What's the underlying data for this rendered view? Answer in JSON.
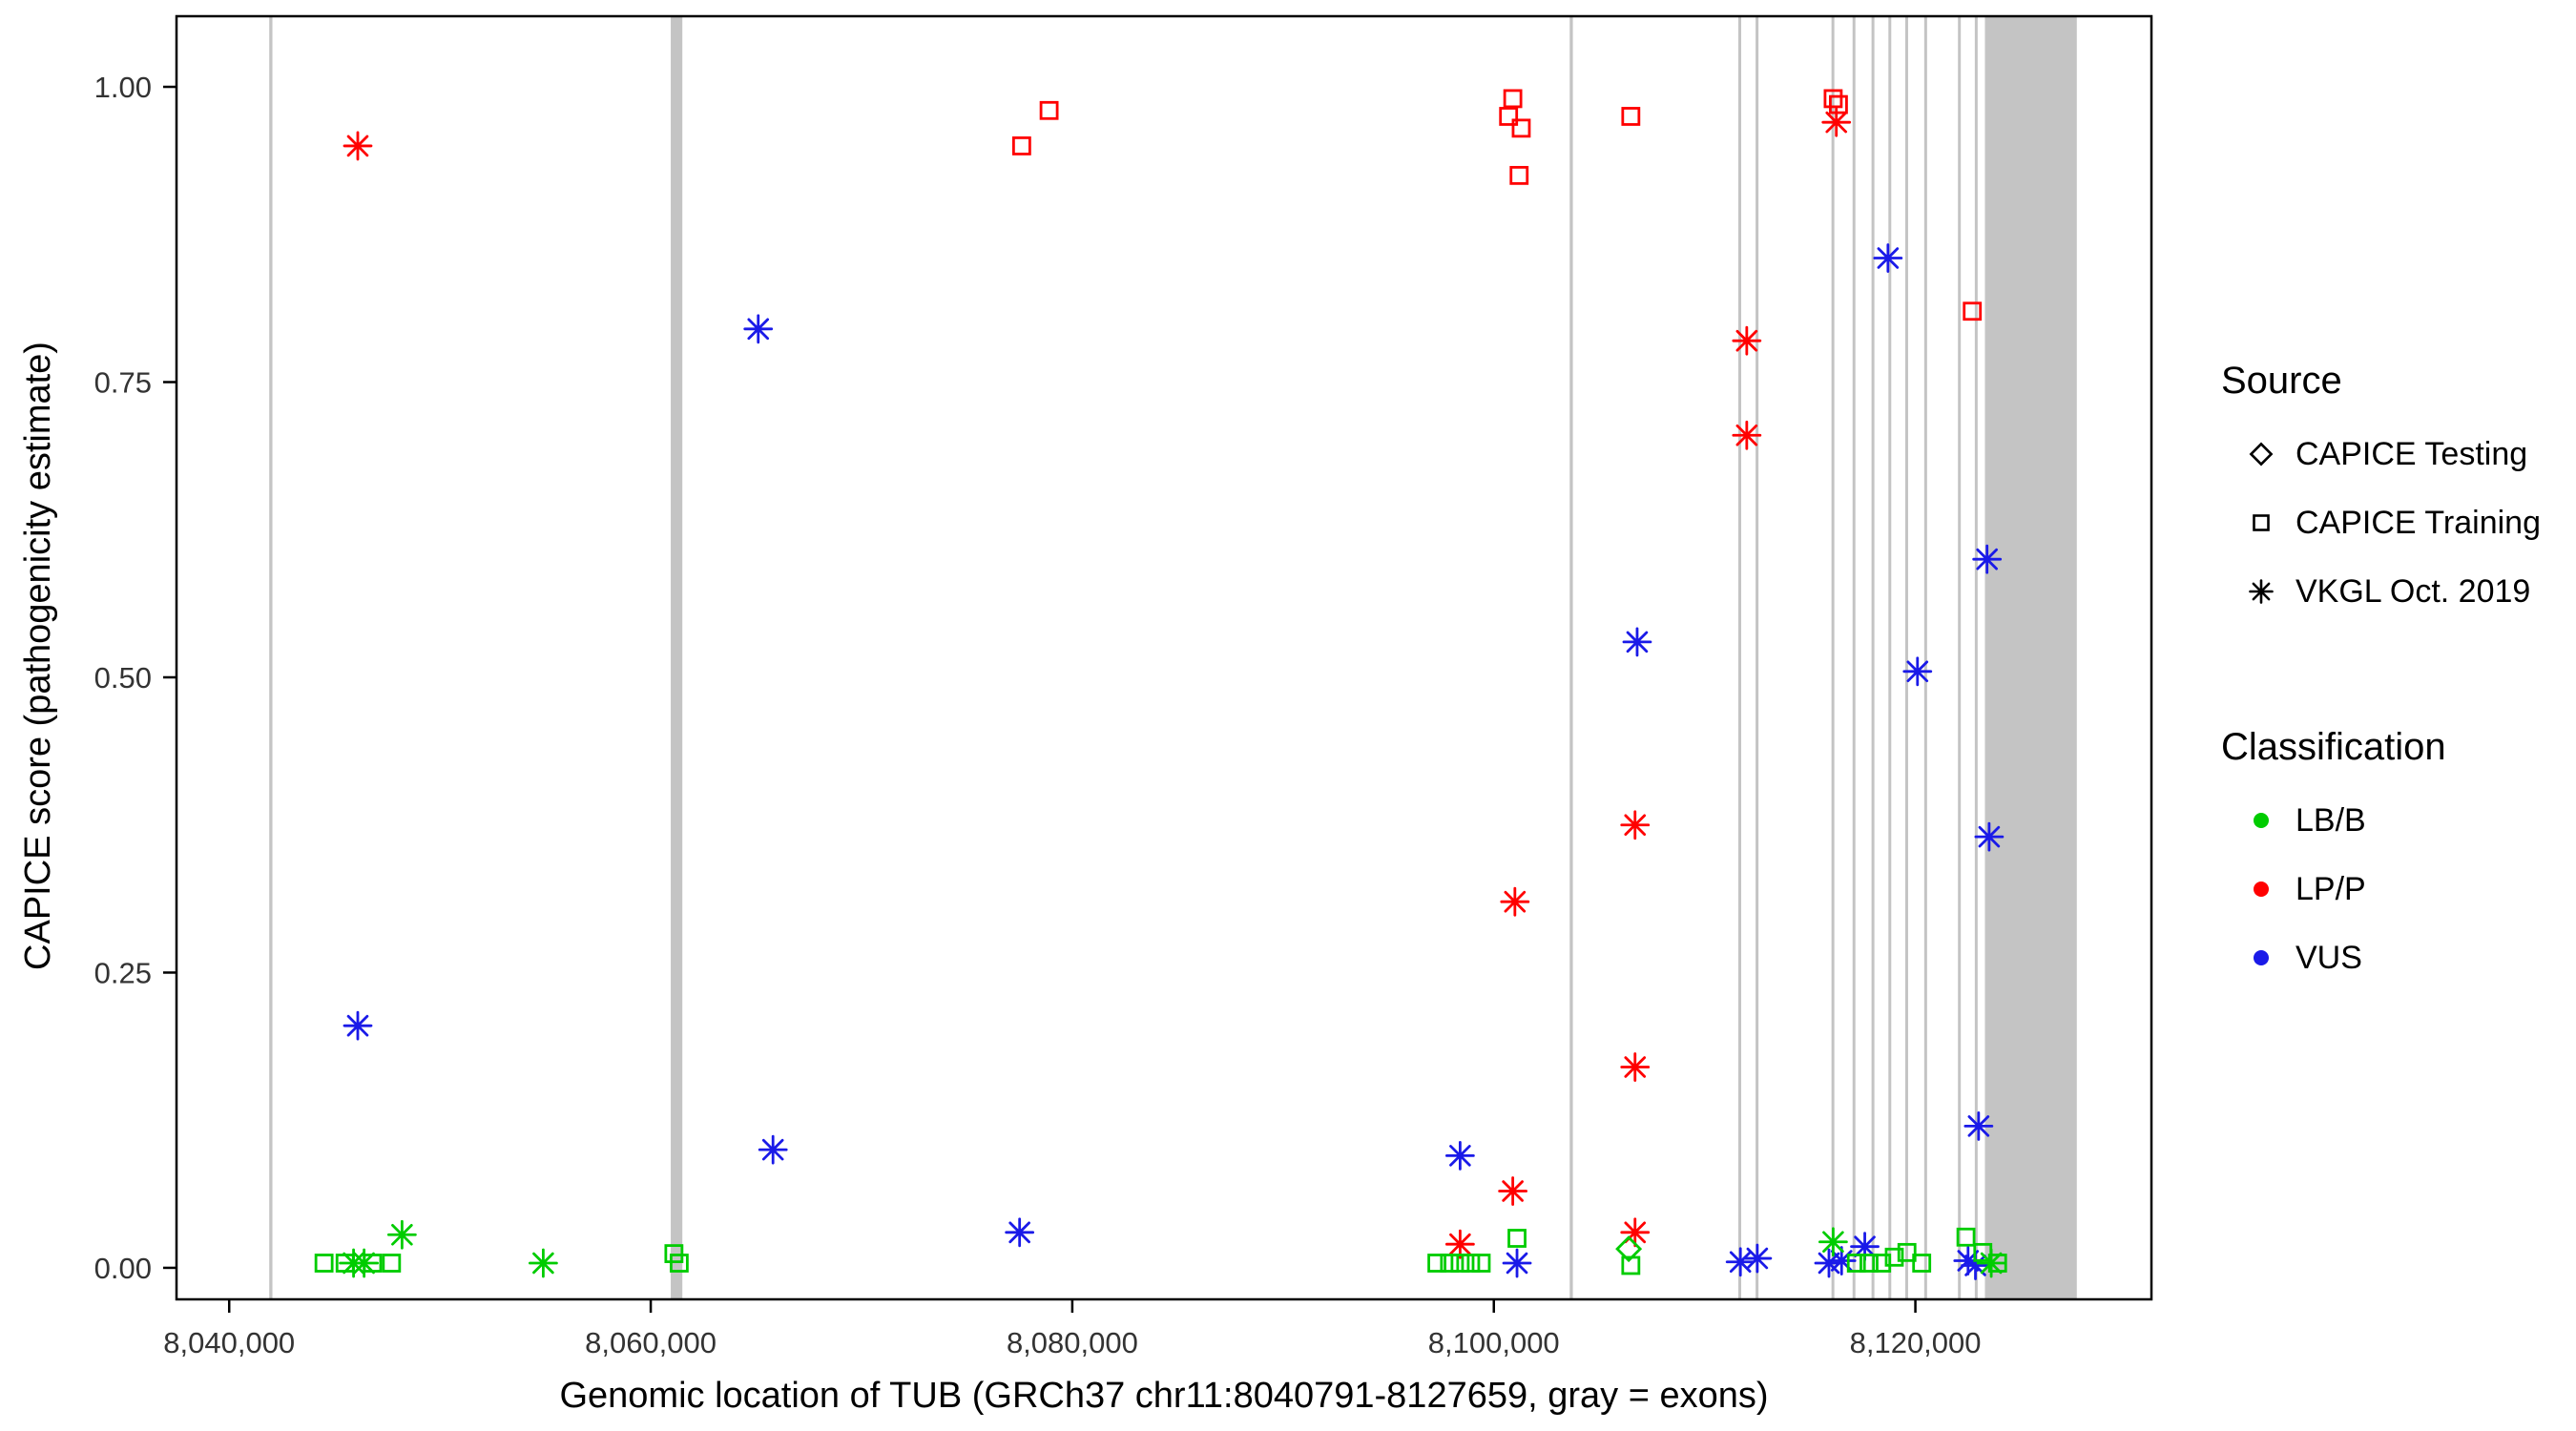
{
  "chart_data": {
    "type": "scatter",
    "title": "",
    "xlabel": "Genomic location of TUB (GRCh37 chr11:8040791-8127659, gray = exons)",
    "ylabel": "CAPICE score (pathogenicity estimate)",
    "x_domain": [
      8037500,
      8131200
    ],
    "y_domain": [
      -0.0267,
      1.0598
    ],
    "grid": false,
    "x_ticks": [
      {
        "v": 8040000,
        "label": "8,040,000"
      },
      {
        "v": 8060000,
        "label": "8,060,000"
      },
      {
        "v": 8080000,
        "label": "8,080,000"
      },
      {
        "v": 8100000,
        "label": "8,100,000"
      },
      {
        "v": 8120000,
        "label": "8,120,000"
      }
    ],
    "y_ticks": [
      {
        "v": 0.0,
        "label": "0.00"
      },
      {
        "v": 0.25,
        "label": "0.25"
      },
      {
        "v": 0.5,
        "label": "0.50"
      },
      {
        "v": 0.75,
        "label": "0.75"
      },
      {
        "v": 1.0,
        "label": "1.00"
      }
    ],
    "colors": {
      "LB/B": "#00CC00",
      "LP/P": "#FF0000",
      "VUS": "#1A1AE8",
      "exon": "#C4C4C4",
      "axis": "#000000",
      "tick_label": "#333333"
    },
    "marker_shapes": {
      "CAPICE Testing": "diamond",
      "CAPICE Training": "square",
      "VKGL Oct. 2019": "asterisk"
    },
    "exons": [
      [
        8041900,
        8042050
      ],
      [
        8060950,
        8061500
      ],
      [
        8103600,
        8103750
      ],
      [
        8111600,
        8111730
      ],
      [
        8112420,
        8112550
      ],
      [
        8116020,
        8116150
      ],
      [
        8117020,
        8117150
      ],
      [
        8117920,
        8118050
      ],
      [
        8118720,
        8118850
      ],
      [
        8119520,
        8119650
      ],
      [
        8120420,
        8120550
      ],
      [
        8122020,
        8122150
      ],
      [
        8122820,
        8122950
      ],
      [
        8123300,
        8127659
      ]
    ],
    "points": [
      {
        "x": 8046100,
        "y": 0.95,
        "source": "VKGL Oct. 2019",
        "cls": "LP/P"
      },
      {
        "x": 8077600,
        "y": 0.95,
        "source": "CAPICE Training",
        "cls": "LP/P"
      },
      {
        "x": 8078900,
        "y": 0.98,
        "source": "CAPICE Training",
        "cls": "LP/P"
      },
      {
        "x": 8100900,
        "y": 0.99,
        "source": "CAPICE Training",
        "cls": "LP/P"
      },
      {
        "x": 8100700,
        "y": 0.975,
        "source": "CAPICE Training",
        "cls": "LP/P"
      },
      {
        "x": 8101300,
        "y": 0.965,
        "source": "CAPICE Training",
        "cls": "LP/P"
      },
      {
        "x": 8101200,
        "y": 0.925,
        "source": "CAPICE Training",
        "cls": "LP/P"
      },
      {
        "x": 8101000,
        "y": 0.31,
        "source": "VKGL Oct. 2019",
        "cls": "LP/P"
      },
      {
        "x": 8100900,
        "y": 0.065,
        "source": "VKGL Oct. 2019",
        "cls": "LP/P"
      },
      {
        "x": 8098400,
        "y": 0.02,
        "source": "VKGL Oct. 2019",
        "cls": "LP/P"
      },
      {
        "x": 8106500,
        "y": 0.975,
        "source": "CAPICE Training",
        "cls": "LP/P"
      },
      {
        "x": 8106700,
        "y": 0.375,
        "source": "VKGL Oct. 2019",
        "cls": "LP/P"
      },
      {
        "x": 8106700,
        "y": 0.17,
        "source": "VKGL Oct. 2019",
        "cls": "LP/P"
      },
      {
        "x": 8106700,
        "y": 0.03,
        "source": "VKGL Oct. 2019",
        "cls": "LP/P"
      },
      {
        "x": 8112000,
        "y": 0.785,
        "source": "VKGL Oct. 2019",
        "cls": "LP/P"
      },
      {
        "x": 8112000,
        "y": 0.705,
        "source": "VKGL Oct. 2019",
        "cls": "LP/P"
      },
      {
        "x": 8116100,
        "y": 0.99,
        "source": "CAPICE Training",
        "cls": "LP/P"
      },
      {
        "x": 8116350,
        "y": 0.985,
        "source": "CAPICE Training",
        "cls": "LP/P"
      },
      {
        "x": 8116250,
        "y": 0.97,
        "source": "VKGL Oct. 2019",
        "cls": "LP/P"
      },
      {
        "x": 8122700,
        "y": 0.81,
        "source": "CAPICE Training",
        "cls": "LP/P"
      },
      {
        "x": 8046100,
        "y": 0.205,
        "source": "VKGL Oct. 2019",
        "cls": "VUS"
      },
      {
        "x": 8065100,
        "y": 0.795,
        "source": "VKGL Oct. 2019",
        "cls": "VUS"
      },
      {
        "x": 8065800,
        "y": 0.1,
        "source": "VKGL Oct. 2019",
        "cls": "VUS"
      },
      {
        "x": 8077500,
        "y": 0.03,
        "source": "VKGL Oct. 2019",
        "cls": "VUS"
      },
      {
        "x": 8098400,
        "y": 0.095,
        "source": "VKGL Oct. 2019",
        "cls": "VUS"
      },
      {
        "x": 8101100,
        "y": 0.004,
        "source": "VKGL Oct. 2019",
        "cls": "VUS"
      },
      {
        "x": 8106800,
        "y": 0.53,
        "source": "VKGL Oct. 2019",
        "cls": "VUS"
      },
      {
        "x": 8111700,
        "y": 0.005,
        "source": "VKGL Oct. 2019",
        "cls": "VUS"
      },
      {
        "x": 8112500,
        "y": 0.008,
        "source": "VKGL Oct. 2019",
        "cls": "VUS"
      },
      {
        "x": 8115900,
        "y": 0.004,
        "source": "VKGL Oct. 2019",
        "cls": "VUS"
      },
      {
        "x": 8116500,
        "y": 0.006,
        "source": "VKGL Oct. 2019",
        "cls": "VUS"
      },
      {
        "x": 8117600,
        "y": 0.018,
        "source": "VKGL Oct. 2019",
        "cls": "VUS"
      },
      {
        "x": 8118700,
        "y": 0.855,
        "source": "VKGL Oct. 2019",
        "cls": "VUS"
      },
      {
        "x": 8120100,
        "y": 0.505,
        "source": "VKGL Oct. 2019",
        "cls": "VUS"
      },
      {
        "x": 8123400,
        "y": 0.6,
        "source": "VKGL Oct. 2019",
        "cls": "VUS"
      },
      {
        "x": 8123500,
        "y": 0.365,
        "source": "VKGL Oct. 2019",
        "cls": "VUS"
      },
      {
        "x": 8123000,
        "y": 0.12,
        "source": "VKGL Oct. 2019",
        "cls": "VUS"
      },
      {
        "x": 8122500,
        "y": 0.006,
        "source": "VKGL Oct. 2019",
        "cls": "VUS"
      },
      {
        "x": 8122850,
        "y": 0.002,
        "source": "VKGL Oct. 2019",
        "cls": "VUS"
      },
      {
        "x": 8044500,
        "y": 0.004,
        "source": "CAPICE Training",
        "cls": "LB/B"
      },
      {
        "x": 8045500,
        "y": 0.004,
        "source": "CAPICE Training",
        "cls": "LB/B"
      },
      {
        "x": 8046800,
        "y": 0.004,
        "source": "CAPICE Training",
        "cls": "LB/B"
      },
      {
        "x": 8047700,
        "y": 0.004,
        "source": "CAPICE Training",
        "cls": "LB/B"
      },
      {
        "x": 8061100,
        "y": 0.012,
        "source": "CAPICE Training",
        "cls": "LB/B"
      },
      {
        "x": 8061350,
        "y": 0.004,
        "source": "CAPICE Training",
        "cls": "LB/B"
      },
      {
        "x": 8097300,
        "y": 0.004,
        "source": "CAPICE Training",
        "cls": "LB/B"
      },
      {
        "x": 8097900,
        "y": 0.004,
        "source": "CAPICE Training",
        "cls": "LB/B"
      },
      {
        "x": 8098400,
        "y": 0.004,
        "source": "CAPICE Training",
        "cls": "LB/B"
      },
      {
        "x": 8098900,
        "y": 0.004,
        "source": "CAPICE Training",
        "cls": "LB/B"
      },
      {
        "x": 8099400,
        "y": 0.004,
        "source": "CAPICE Training",
        "cls": "LB/B"
      },
      {
        "x": 8101100,
        "y": 0.025,
        "source": "CAPICE Training",
        "cls": "LB/B"
      },
      {
        "x": 8106500,
        "y": 0.002,
        "source": "CAPICE Training",
        "cls": "LB/B"
      },
      {
        "x": 8117200,
        "y": 0.004,
        "source": "CAPICE Training",
        "cls": "LB/B"
      },
      {
        "x": 8117800,
        "y": 0.004,
        "source": "CAPICE Training",
        "cls": "LB/B"
      },
      {
        "x": 8118400,
        "y": 0.004,
        "source": "CAPICE Training",
        "cls": "LB/B"
      },
      {
        "x": 8119000,
        "y": 0.009,
        "source": "CAPICE Training",
        "cls": "LB/B"
      },
      {
        "x": 8119600,
        "y": 0.013,
        "source": "CAPICE Training",
        "cls": "LB/B"
      },
      {
        "x": 8120300,
        "y": 0.004,
        "source": "CAPICE Training",
        "cls": "LB/B"
      },
      {
        "x": 8122400,
        "y": 0.026,
        "source": "CAPICE Training",
        "cls": "LB/B"
      },
      {
        "x": 8123200,
        "y": 0.013,
        "source": "CAPICE Training",
        "cls": "LB/B"
      },
      {
        "x": 8123900,
        "y": 0.004,
        "source": "CAPICE Training",
        "cls": "LB/B"
      },
      {
        "x": 8045900,
        "y": 0.004,
        "source": "VKGL Oct. 2019",
        "cls": "LB/B"
      },
      {
        "x": 8046400,
        "y": 0.004,
        "source": "VKGL Oct. 2019",
        "cls": "LB/B"
      },
      {
        "x": 8048200,
        "y": 0.028,
        "source": "VKGL Oct. 2019",
        "cls": "LB/B"
      },
      {
        "x": 8054900,
        "y": 0.004,
        "source": "VKGL Oct. 2019",
        "cls": "LB/B"
      },
      {
        "x": 8116100,
        "y": 0.022,
        "source": "VKGL Oct. 2019",
        "cls": "LB/B"
      },
      {
        "x": 8123600,
        "y": 0.004,
        "source": "VKGL Oct. 2019",
        "cls": "LB/B"
      },
      {
        "x": 8106400,
        "y": 0.016,
        "source": "CAPICE Testing",
        "cls": "LB/B"
      }
    ]
  },
  "legend": {
    "source": {
      "title": "Source",
      "items": [
        {
          "label": "CAPICE Testing",
          "shape": "diamond"
        },
        {
          "label": "CAPICE Training",
          "shape": "square"
        },
        {
          "label": "VKGL Oct. 2019",
          "shape": "asterisk"
        }
      ]
    },
    "classification": {
      "title": "Classification",
      "items": [
        {
          "label": "LB/B",
          "shape": "dot",
          "color_key": "LB/B"
        },
        {
          "label": "LP/P",
          "shape": "dot",
          "color_key": "LP/P"
        },
        {
          "label": "VUS",
          "shape": "dot",
          "color_key": "VUS"
        }
      ]
    }
  }
}
